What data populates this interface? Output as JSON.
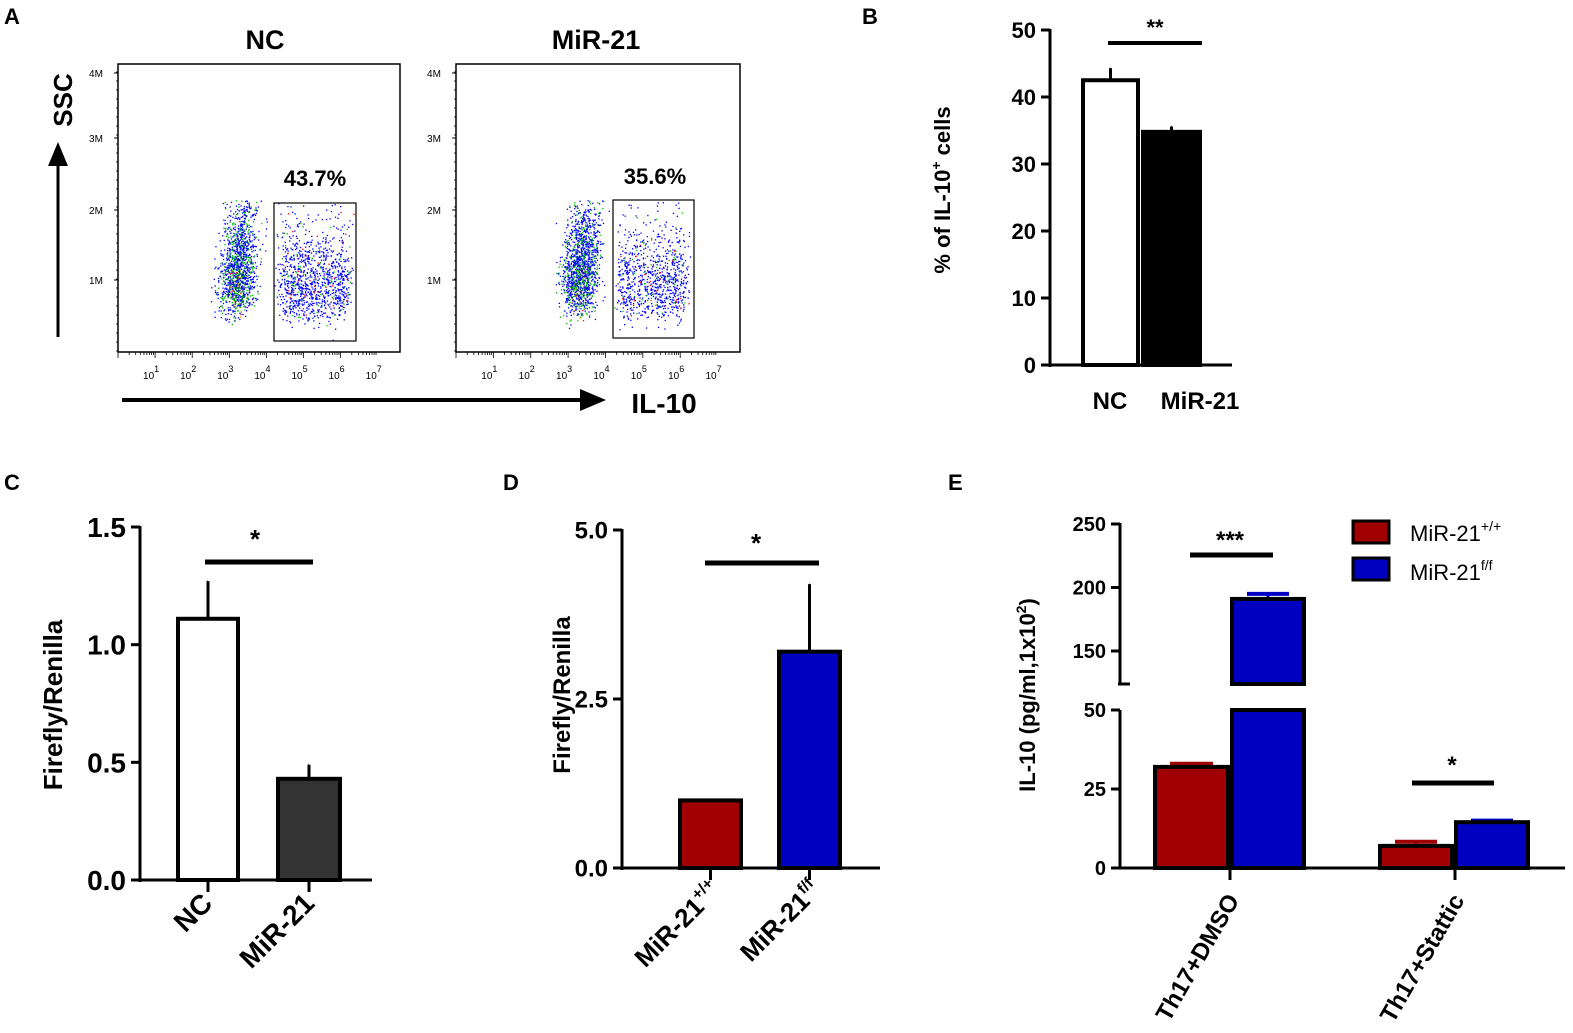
{
  "chart_data": [
    {
      "panel": "A",
      "type": "scatter",
      "subplots": [
        {
          "title": "NC",
          "gate_percent_label": "43.7%"
        },
        {
          "title": "MiR-21",
          "gate_percent_label": "35.6%"
        }
      ],
      "xlabel": "IL-10",
      "ylabel": "SSC",
      "yticks": [
        "4M",
        "3M",
        "2M",
        "1M"
      ],
      "xticks": [
        {
          "base": "10",
          "exp": "1"
        },
        {
          "base": "10",
          "exp": "2"
        },
        {
          "base": "10",
          "exp": "3"
        },
        {
          "base": "10",
          "exp": "4"
        },
        {
          "base": "10",
          "exp": "5"
        },
        {
          "base": "10",
          "exp": "6"
        },
        {
          "base": "10",
          "exp": "7"
        }
      ]
    },
    {
      "panel": "B",
      "type": "bar",
      "categories": [
        "NC",
        "MiR-21"
      ],
      "values": [
        42.5,
        34.8
      ],
      "errors": [
        1.8,
        0.8
      ],
      "colors": [
        "#ffffff",
        "#000000"
      ],
      "ylabel_main": "% of IL-10",
      "ylabel_sup": "+",
      "ylabel_tail": " cells",
      "ylim": [
        0,
        50
      ],
      "yticks": [
        "0",
        "10",
        "20",
        "30",
        "40",
        "50"
      ],
      "significance": [
        {
          "between": [
            0,
            1
          ],
          "label": "**"
        }
      ]
    },
    {
      "panel": "C",
      "type": "bar",
      "categories": [
        "NC",
        "MiR-21"
      ],
      "values": [
        1.11,
        0.43
      ],
      "errors": [
        0.16,
        0.06
      ],
      "colors": [
        "#ffffff",
        "#333333"
      ],
      "ylabel": "Firefly/Renilla",
      "ylim": [
        0,
        1.5
      ],
      "yticks": [
        "0.0",
        "0.5",
        "1.0",
        "1.5"
      ],
      "significance": [
        {
          "between": [
            0,
            1
          ],
          "label": "*"
        }
      ]
    },
    {
      "panel": "D",
      "type": "bar",
      "categories": [
        {
          "base": "MiR-21",
          "sup": "+/+"
        },
        {
          "base": "MiR-21",
          "sup": "f/f"
        }
      ],
      "values": [
        1.0,
        3.2
      ],
      "errors": [
        0,
        1.0
      ],
      "colors": [
        "#a00000",
        "#0000c0"
      ],
      "ylabel": "Firefly/Renilla",
      "ylim": [
        0,
        5
      ],
      "yticks": [
        "0.0",
        "2.5",
        "5.0"
      ],
      "significance": [
        {
          "between": [
            0,
            1
          ],
          "label": "*"
        }
      ]
    },
    {
      "panel": "E",
      "type": "bar",
      "categories": [
        "Th17+DMSO",
        "Th17+Stattic"
      ],
      "series": [
        {
          "name": "MiR-21",
          "sup": "+/+",
          "color": "#a00000",
          "values": [
            32,
            7
          ],
          "errors": [
            1,
            1.3
          ]
        },
        {
          "name": "MiR-21",
          "sup": "f/f",
          "color": "#0000c0",
          "values": [
            191,
            14.5
          ],
          "errors": [
            4,
            0.5
          ]
        }
      ],
      "ylabel_main": "IL-10 (pg/ml,1x10",
      "ylabel_sup": "2",
      "ylabel_tail": ")",
      "axis_break": [
        50,
        130
      ],
      "ylim": [
        0,
        250
      ],
      "yticks": [
        "0",
        "25",
        "50",
        "150",
        "200",
        "250"
      ],
      "legend_position": "top-right",
      "significance": [
        {
          "group": 0,
          "label": "***"
        },
        {
          "group": 1,
          "label": "*"
        }
      ]
    }
  ],
  "panel_labels": [
    "A",
    "B",
    "C",
    "D",
    "E"
  ]
}
